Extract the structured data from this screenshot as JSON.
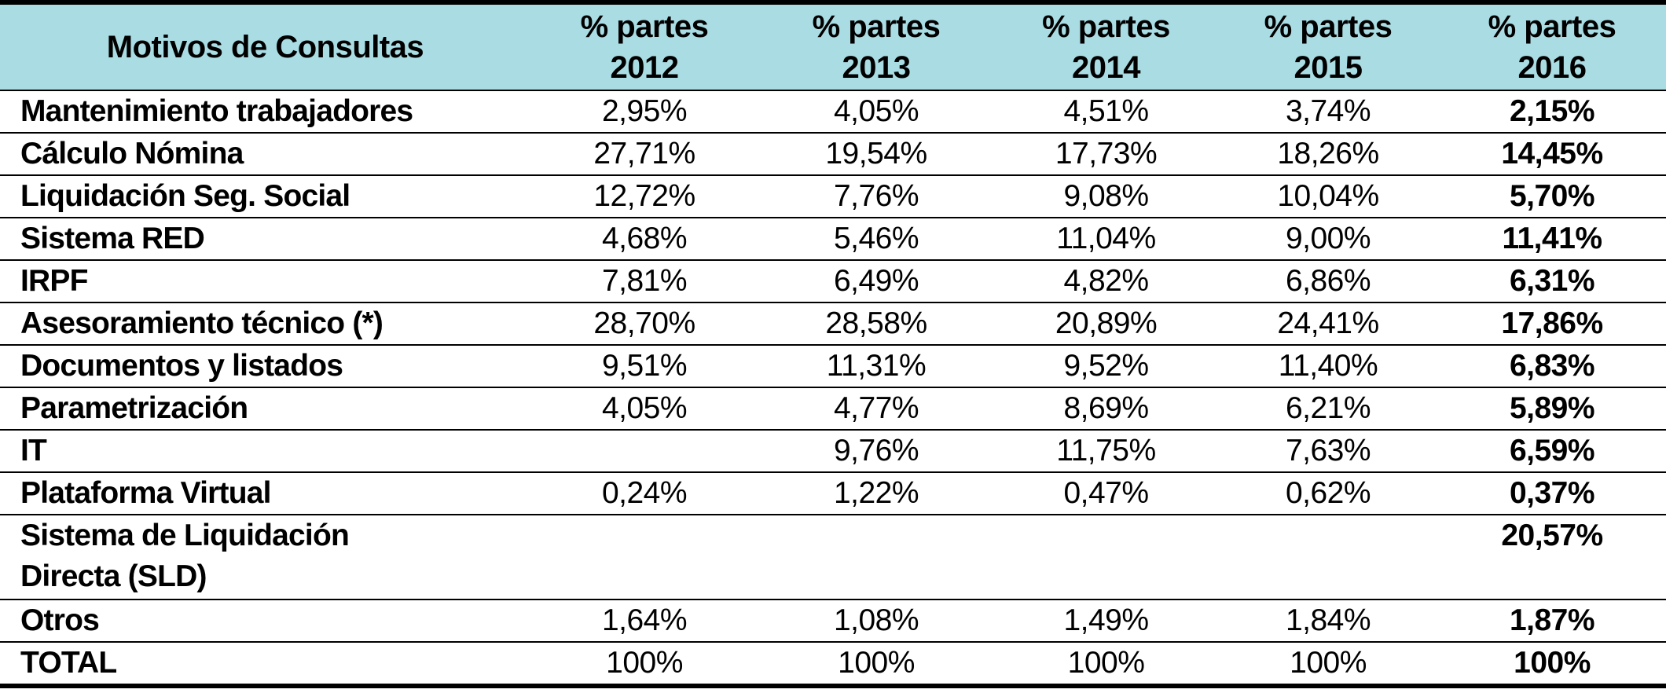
{
  "table": {
    "headers": [
      {
        "lines": [
          "Motivos de Consultas"
        ]
      },
      {
        "lines": [
          "% partes",
          "2012"
        ]
      },
      {
        "lines": [
          "% partes",
          "2013"
        ]
      },
      {
        "lines": [
          "% partes",
          "2014"
        ]
      },
      {
        "lines": [
          "% partes",
          "2015"
        ]
      },
      {
        "lines": [
          "% partes",
          "2016"
        ]
      }
    ],
    "rows": [
      {
        "label": "Mantenimiento trabajadores",
        "values": [
          "2,95%",
          "4,05%",
          "4,51%",
          "3,74%",
          "2,15%"
        ]
      },
      {
        "label": "Cálculo Nómina",
        "values": [
          "27,71%",
          "19,54%",
          "17,73%",
          "18,26%",
          "14,45%"
        ]
      },
      {
        "label": "Liquidación Seg. Social",
        "values": [
          "12,72%",
          "7,76%",
          "9,08%",
          "10,04%",
          "5,70%"
        ]
      },
      {
        "label": "Sistema RED",
        "values": [
          "4,68%",
          "5,46%",
          "11,04%",
          "9,00%",
          "11,41%"
        ]
      },
      {
        "label": "IRPF",
        "values": [
          "7,81%",
          "6,49%",
          "4,82%",
          "6,86%",
          "6,31%"
        ]
      },
      {
        "label": "Asesoramiento técnico (*)",
        "values": [
          "28,70%",
          "28,58%",
          "20,89%",
          "24,41%",
          "17,86%"
        ]
      },
      {
        "label": "Documentos y listados",
        "values": [
          "9,51%",
          "11,31%",
          "9,52%",
          "11,40%",
          "6,83%"
        ]
      },
      {
        "label": "Parametrización",
        "values": [
          "4,05%",
          "4,77%",
          "8,69%",
          "6,21%",
          "5,89%"
        ]
      },
      {
        "label": "IT",
        "values": [
          "",
          "9,76%",
          "11,75%",
          "7,63%",
          "6,59%"
        ]
      },
      {
        "label": "Plataforma Virtual",
        "values": [
          "0,24%",
          "1,22%",
          "0,47%",
          "0,62%",
          "0,37%"
        ]
      },
      {
        "label": "Sistema de Liquidación Directa (SLD)",
        "values": [
          "",
          "",
          "",
          "",
          "20,57%"
        ],
        "tall": true
      },
      {
        "label": "Otros",
        "values": [
          "1,64%",
          "1,08%",
          "1,49%",
          "1,84%",
          "1,87%"
        ]
      },
      {
        "label": "TOTAL",
        "values": [
          "100%",
          "100%",
          "100%",
          "100%",
          "100%"
        ]
      }
    ],
    "colors": {
      "header_bg": "#a9dce3",
      "border": "#000000",
      "text": "#000000"
    }
  }
}
